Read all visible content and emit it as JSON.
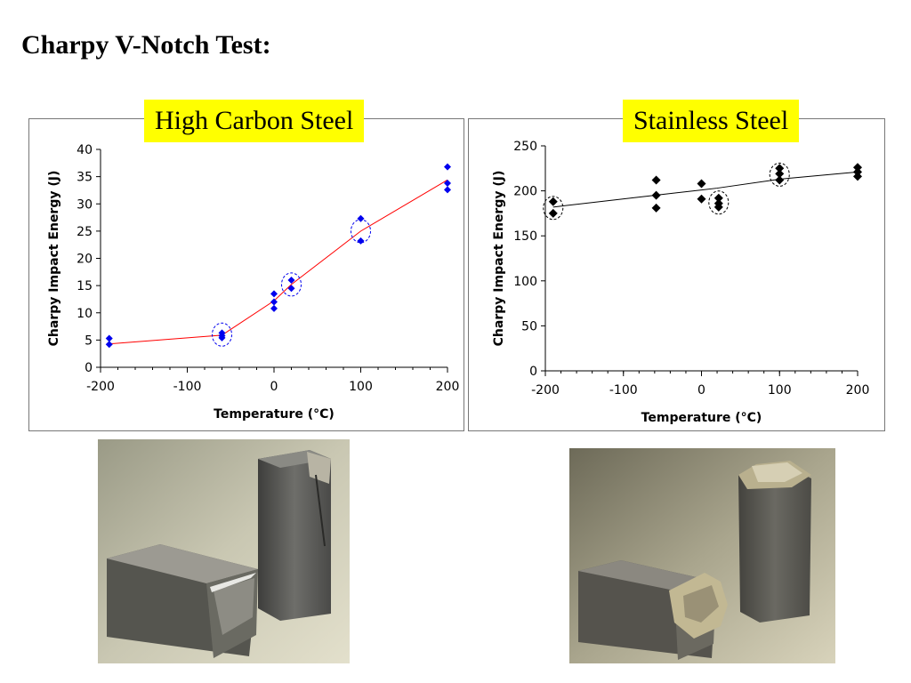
{
  "page": {
    "title": "Charpy V-Notch Test:"
  },
  "colors": {
    "carbon_series": "#0000ee",
    "carbon_line": "#ff0000",
    "stainless_series": "#000000",
    "stainless_line": "#000000",
    "tag_background": "#ffff00"
  },
  "chart_data": [
    {
      "type": "scatter",
      "title": "High Carbon Steel",
      "xlabel": "Temperature (°C)",
      "ylabel": "Charpy Impact Energy (J)",
      "xlim": [
        -200,
        200
      ],
      "ylim": [
        0,
        40
      ],
      "xticks": [
        -200,
        -100,
        0,
        100,
        200
      ],
      "yticks": [
        0,
        5,
        10,
        15,
        20,
        25,
        30,
        35,
        40
      ],
      "xtick_labels": [
        "-200",
        "-100",
        "0",
        "100",
        "200"
      ],
      "ytick_labels": [
        "0",
        "5",
        "10",
        "15",
        "20",
        "25",
        "30",
        "35",
        "40"
      ],
      "points": [
        [
          -190,
          5.3
        ],
        [
          -190,
          4.2
        ],
        [
          -60,
          6.3
        ],
        [
          -60,
          5.8
        ],
        [
          -60,
          5.4
        ],
        [
          0,
          13.5
        ],
        [
          0,
          12.0
        ],
        [
          0,
          10.8
        ],
        [
          20,
          16.0
        ],
        [
          20,
          14.5
        ],
        [
          100,
          27.3
        ],
        [
          100,
          23.2
        ],
        [
          200,
          36.8
        ],
        [
          200,
          33.8
        ],
        [
          200,
          32.6
        ]
      ],
      "trend": [
        [
          -190,
          4.3
        ],
        [
          -60,
          5.9
        ],
        [
          0,
          12.2
        ],
        [
          20,
          15.2
        ],
        [
          100,
          25.0
        ],
        [
          200,
          34.4
        ]
      ],
      "highlighted": [
        [
          -60,
          6.0
        ],
        [
          20,
          15.2
        ],
        [
          100,
          25.0
        ]
      ]
    },
    {
      "type": "scatter",
      "title": "Stainless Steel",
      "xlabel": "Temperature (°C)",
      "ylabel": "Charpy Impact Energy (J)",
      "xlim": [
        -200,
        200
      ],
      "ylim": [
        0,
        250
      ],
      "xticks": [
        -200,
        -100,
        0,
        100,
        200
      ],
      "yticks": [
        0,
        50,
        100,
        150,
        200,
        250
      ],
      "xtick_labels": [
        "-200",
        "-100",
        "0",
        "100",
        "200"
      ],
      "ytick_labels": [
        "0",
        "50",
        "100",
        "150",
        "200",
        "250"
      ],
      "points": [
        [
          -190,
          188
        ],
        [
          -190,
          175
        ],
        [
          -58,
          212
        ],
        [
          -58,
          195
        ],
        [
          -58,
          181
        ],
        [
          0,
          208
        ],
        [
          0,
          191
        ],
        [
          22,
          192
        ],
        [
          22,
          186
        ],
        [
          22,
          182
        ],
        [
          100,
          225
        ],
        [
          100,
          219
        ],
        [
          100,
          212
        ],
        [
          200,
          226
        ],
        [
          200,
          221
        ],
        [
          200,
          216
        ]
      ],
      "trend": [
        [
          -190,
          182
        ],
        [
          -60,
          195
        ],
        [
          0,
          201
        ],
        [
          20,
          203
        ],
        [
          100,
          213
        ],
        [
          200,
          221
        ]
      ],
      "highlighted": [
        [
          -190,
          181
        ],
        [
          22,
          187
        ],
        [
          100,
          218
        ]
      ]
    }
  ],
  "photos": [
    {
      "alt": "Fractured high carbon steel Charpy specimen"
    },
    {
      "alt": "Fractured stainless steel Charpy specimen"
    }
  ]
}
